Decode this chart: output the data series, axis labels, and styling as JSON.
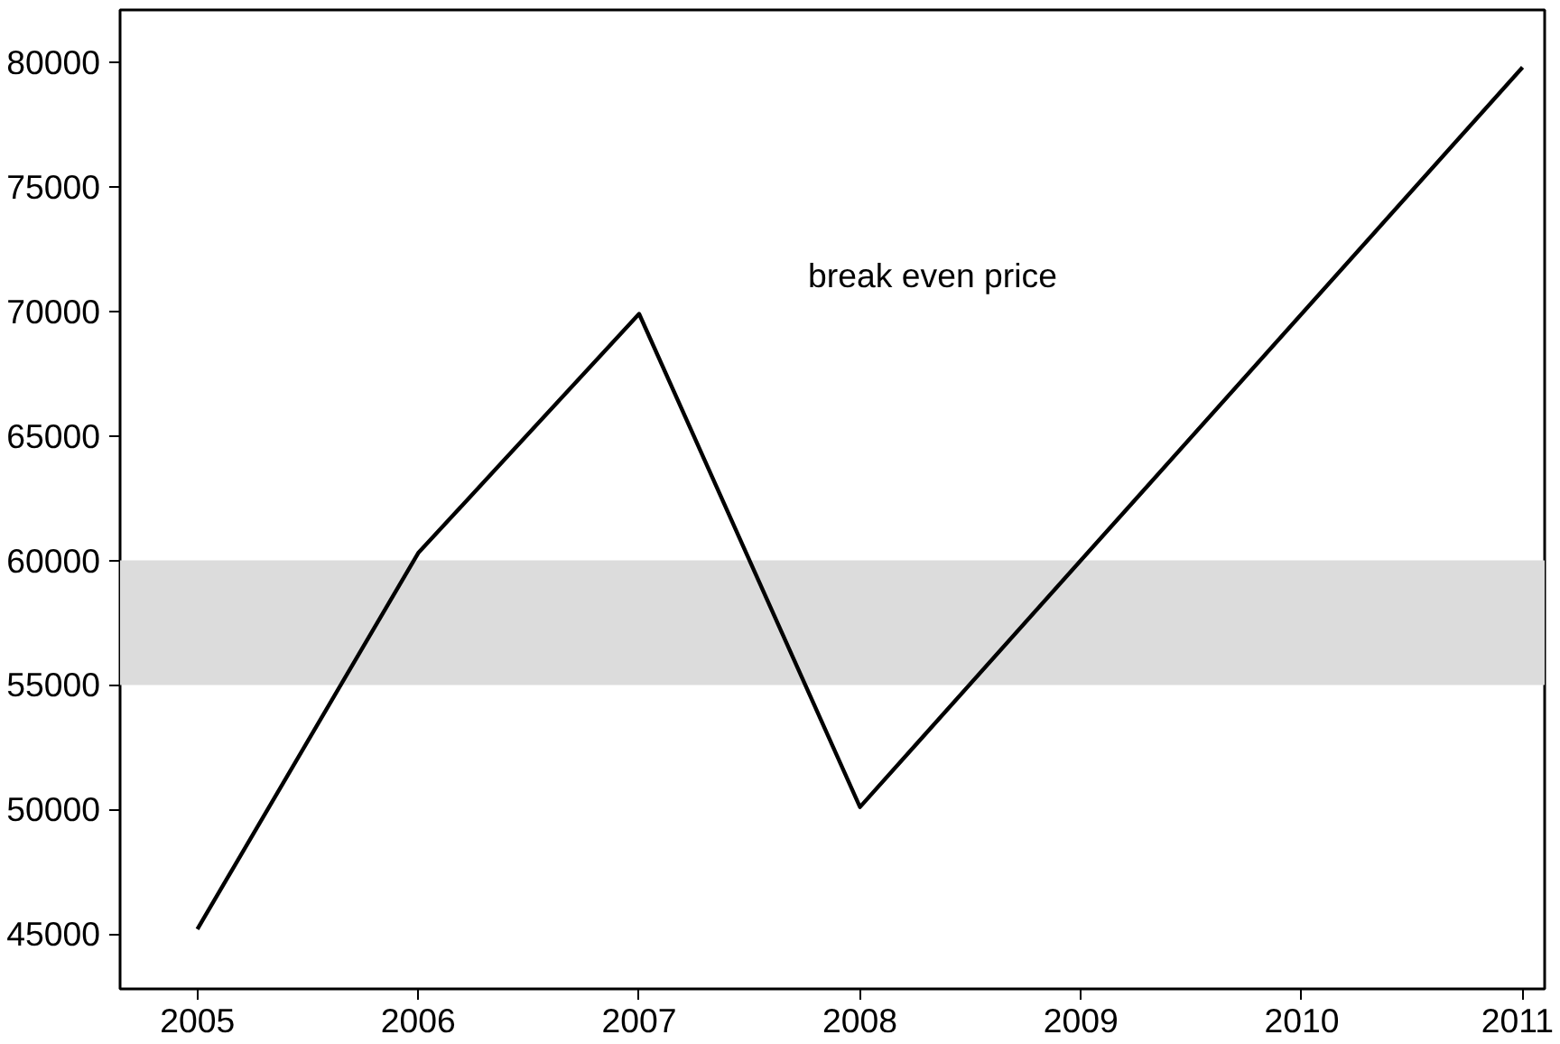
{
  "chart_data": {
    "type": "line",
    "x": [
      2005,
      2006,
      2007,
      2008,
      2009,
      2010,
      2011
    ],
    "series": [
      {
        "color": "#000000",
        "values": [
          45200,
          60300,
          69900,
          50100,
          60000,
          69900,
          79800
        ]
      }
    ],
    "xlim": [
      2004.65,
      2011.1
    ],
    "xticks": [
      2005,
      2006,
      2007,
      2008,
      2009,
      2010,
      2011
    ],
    "ylim": [
      42800,
      82100
    ],
    "yticks": [
      45000,
      50000,
      55000,
      60000,
      65000,
      70000,
      75000,
      80000
    ],
    "bands": [
      {
        "axis": "y",
        "from": 55000,
        "to": 60000,
        "color": "#dcdcdc"
      }
    ],
    "annotations": [
      "break even price"
    ],
    "grid": false,
    "line_style": "solid"
  }
}
